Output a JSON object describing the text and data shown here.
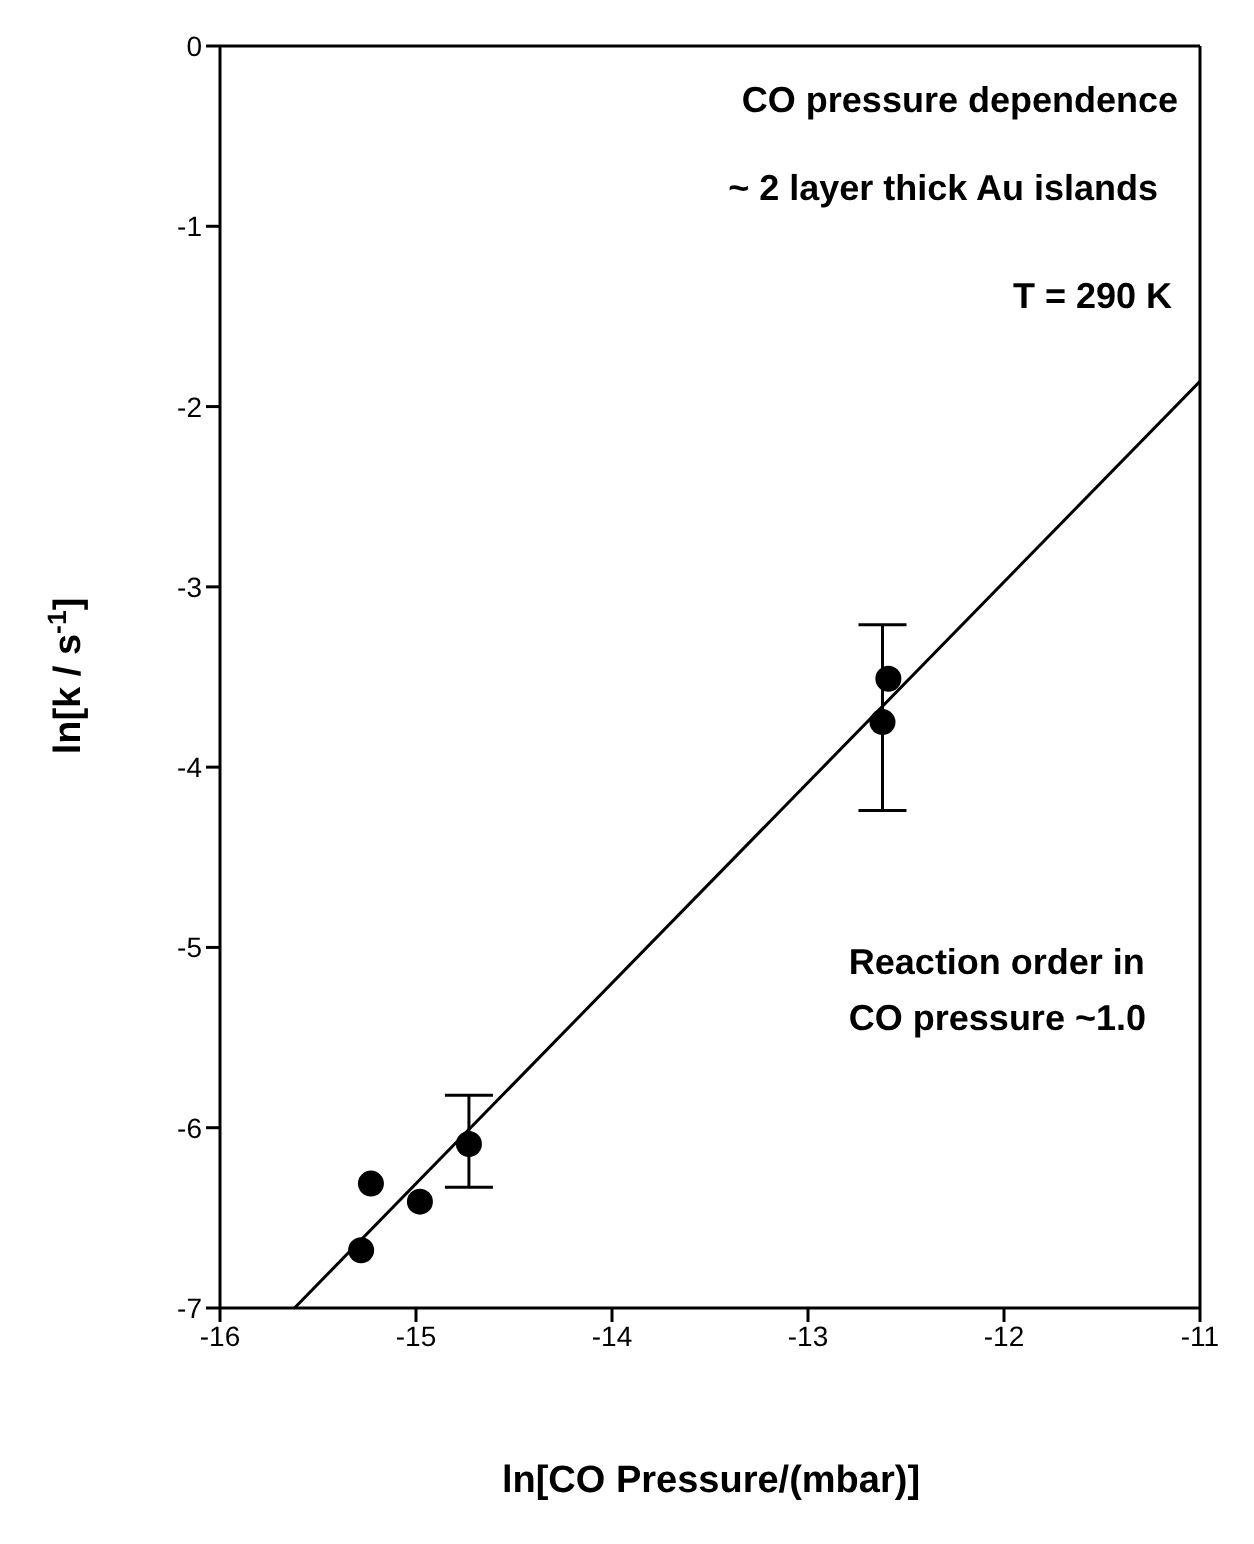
{
  "chart_data": {
    "type": "scatter",
    "xlabel": "ln[CO Pressure/(mbar)]",
    "ylabel": "ln[k / s$^{-1}$]",
    "xlim": [
      -16,
      -11
    ],
    "xticks": [
      -16,
      -15,
      -14,
      -13,
      -12,
      -11
    ],
    "ylim": [
      -7,
      0
    ],
    "yticks": [
      -7,
      -6,
      -5,
      -4,
      -3,
      -2,
      -1,
      0
    ],
    "grid": false,
    "legend": false,
    "series": [
      {
        "marker": "circle",
        "color": "#000000",
        "x": [
          -15.28,
          -15.23,
          -14.98,
          -14.73,
          -12.62,
          -12.59
        ],
        "values": [
          -6.68,
          -6.31,
          -6.41,
          -6.09,
          -3.75,
          -3.51
        ],
        "errors": [
          null,
          null,
          null,
          [
            -6.33,
            -5.82
          ],
          [
            -4.24,
            -3.21
          ],
          null
        ]
      },
      {
        "type": "line",
        "color": "#000000",
        "line_style": "solid",
        "x": [
          -15.62,
          -11
        ],
        "values": [
          -7,
          -1.86
        ]
      }
    ],
    "annotations": [
      "CO pressure dependence",
      "~ 2 layer thick Au islands",
      "T = 290 K",
      "Reaction order in\nCO pressure ~1.0"
    ]
  }
}
